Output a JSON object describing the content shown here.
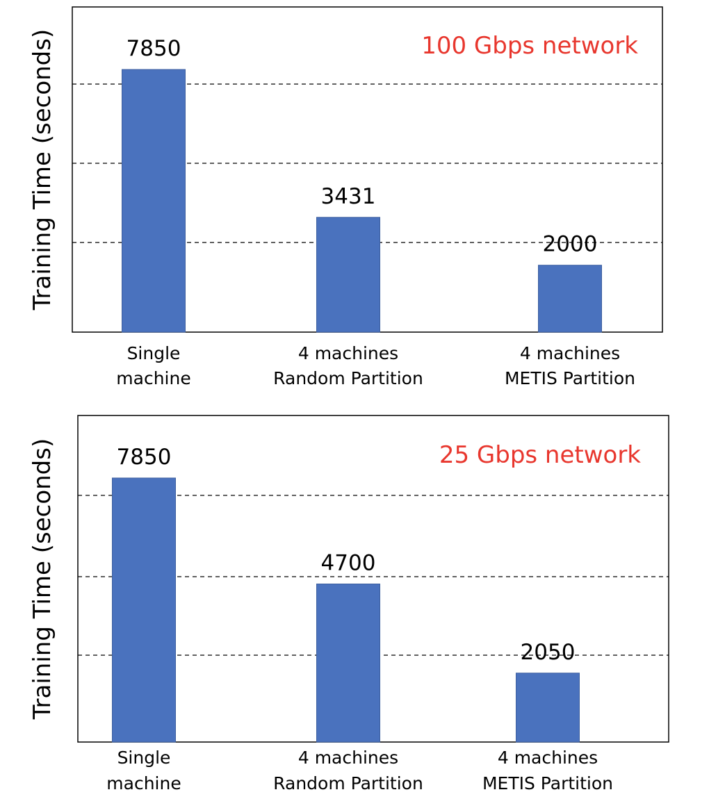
{
  "chart_data": [
    {
      "type": "bar",
      "annotation": "100 Gbps network",
      "ylabel": "Training  Time (seconds)",
      "categories": [
        [
          "Single",
          "machine"
        ],
        [
          "4 machines",
          "Random Partition"
        ],
        [
          "4 machines",
          "METIS Partition"
        ]
      ],
      "values": [
        7850,
        3431,
        2000
      ],
      "data_labels": [
        "7850",
        "3431",
        "2000"
      ],
      "ylim": [
        0,
        10000
      ],
      "grid": true,
      "bar_color": "#4a72be",
      "annotation_color": "#e8362d"
    },
    {
      "type": "bar",
      "annotation": "25 Gbps network",
      "ylabel": "Training  Time (seconds)",
      "categories": [
        [
          "Single",
          "machine"
        ],
        [
          "4 machines",
          "Random Partition"
        ],
        [
          "4 machines",
          "METIS Partition"
        ]
      ],
      "values": [
        7850,
        4700,
        2050
      ],
      "data_labels": [
        "7850",
        "4700",
        "2050"
      ],
      "ylim": [
        0,
        10000
      ],
      "grid": true,
      "bar_color": "#4a72be",
      "annotation_color": "#e8362d"
    }
  ]
}
